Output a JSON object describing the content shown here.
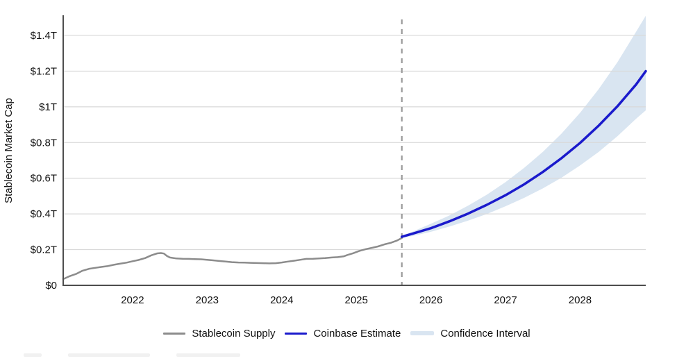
{
  "chart_data": {
    "type": "line",
    "title": "",
    "xlabel": "",
    "ylabel": "Stablecoin Market Cap",
    "x_unit": "year",
    "y_unit": "trillions USD",
    "xlim": [
      2021.07,
      2028.88
    ],
    "ylim": [
      0,
      1.513
    ],
    "grid": "horizontal",
    "colors": {
      "history_line": "#8c8c8c",
      "forecast_line": "#1a1acc",
      "confidence_band": "#d9e5f1",
      "gridline": "#d9d9d9",
      "axis": "#4d4d4d",
      "divider": "#999999",
      "text": "#111111"
    },
    "yticks": [
      {
        "v": 0.0,
        "label": "$0"
      },
      {
        "v": 0.2,
        "label": "$0.2T"
      },
      {
        "v": 0.4,
        "label": "$0.4T"
      },
      {
        "v": 0.6,
        "label": "$0.6T"
      },
      {
        "v": 0.8,
        "label": "$0.8T"
      },
      {
        "v": 1.0,
        "label": "$1T"
      },
      {
        "v": 1.2,
        "label": "$1.2T"
      },
      {
        "v": 1.4,
        "label": "$1.4T"
      }
    ],
    "xticks": [
      {
        "v": 2022,
        "label": "2022"
      },
      {
        "v": 2023,
        "label": "2023"
      },
      {
        "v": 2024,
        "label": "2024"
      },
      {
        "v": 2025,
        "label": "2025"
      },
      {
        "v": 2026,
        "label": "2026"
      },
      {
        "v": 2027,
        "label": "2027"
      },
      {
        "v": 2028,
        "label": "2028"
      }
    ],
    "forecast_divider_x": 2025.61,
    "series": [
      {
        "name": "Stablecoin Supply",
        "color": "#8c8c8c",
        "width": 2.5,
        "points": [
          [
            2021.07,
            0.035
          ],
          [
            2021.15,
            0.05
          ],
          [
            2021.25,
            0.065
          ],
          [
            2021.33,
            0.082
          ],
          [
            2021.42,
            0.093
          ],
          [
            2021.5,
            0.098
          ],
          [
            2021.58,
            0.103
          ],
          [
            2021.67,
            0.108
          ],
          [
            2021.75,
            0.115
          ],
          [
            2021.83,
            0.121
          ],
          [
            2021.92,
            0.127
          ],
          [
            2022.0,
            0.135
          ],
          [
            2022.08,
            0.142
          ],
          [
            2022.17,
            0.153
          ],
          [
            2022.25,
            0.168
          ],
          [
            2022.33,
            0.179
          ],
          [
            2022.38,
            0.181
          ],
          [
            2022.42,
            0.178
          ],
          [
            2022.46,
            0.165
          ],
          [
            2022.5,
            0.156
          ],
          [
            2022.58,
            0.151
          ],
          [
            2022.67,
            0.149
          ],
          [
            2022.75,
            0.148
          ],
          [
            2022.83,
            0.147
          ],
          [
            2022.92,
            0.146
          ],
          [
            2023.0,
            0.143
          ],
          [
            2023.08,
            0.14
          ],
          [
            2023.17,
            0.136
          ],
          [
            2023.25,
            0.133
          ],
          [
            2023.33,
            0.13
          ],
          [
            2023.42,
            0.128
          ],
          [
            2023.5,
            0.127
          ],
          [
            2023.58,
            0.126
          ],
          [
            2023.67,
            0.125
          ],
          [
            2023.75,
            0.124
          ],
          [
            2023.83,
            0.123
          ],
          [
            2023.92,
            0.124
          ],
          [
            2024.0,
            0.128
          ],
          [
            2024.08,
            0.133
          ],
          [
            2024.17,
            0.138
          ],
          [
            2024.25,
            0.143
          ],
          [
            2024.33,
            0.148
          ],
          [
            2024.42,
            0.149
          ],
          [
            2024.5,
            0.151
          ],
          [
            2024.58,
            0.153
          ],
          [
            2024.67,
            0.156
          ],
          [
            2024.75,
            0.158
          ],
          [
            2024.83,
            0.162
          ],
          [
            2024.88,
            0.17
          ],
          [
            2024.96,
            0.18
          ],
          [
            2025.04,
            0.193
          ],
          [
            2025.13,
            0.203
          ],
          [
            2025.21,
            0.21
          ],
          [
            2025.29,
            0.218
          ],
          [
            2025.38,
            0.23
          ],
          [
            2025.46,
            0.238
          ],
          [
            2025.54,
            0.25
          ],
          [
            2025.61,
            0.265
          ]
        ]
      },
      {
        "name": "Coinbase Estimate",
        "color": "#1a1acc",
        "width": 3.5,
        "points": [
          [
            2025.61,
            0.272
          ],
          [
            2025.75,
            0.289
          ],
          [
            2026.0,
            0.32
          ],
          [
            2026.25,
            0.359
          ],
          [
            2026.5,
            0.402
          ],
          [
            2026.75,
            0.451
          ],
          [
            2027.0,
            0.505
          ],
          [
            2027.25,
            0.566
          ],
          [
            2027.5,
            0.635
          ],
          [
            2027.75,
            0.712
          ],
          [
            2028.0,
            0.798
          ],
          [
            2028.25,
            0.895
          ],
          [
            2028.5,
            1.003
          ],
          [
            2028.75,
            1.125
          ],
          [
            2028.88,
            1.2
          ]
        ]
      }
    ],
    "band": {
      "name": "Confidence Interval",
      "color": "#d9e5f1",
      "upper": [
        [
          2025.61,
          0.278
        ],
        [
          2025.75,
          0.3
        ],
        [
          2026.0,
          0.345
        ],
        [
          2026.25,
          0.392
        ],
        [
          2026.5,
          0.447
        ],
        [
          2026.75,
          0.508
        ],
        [
          2027.0,
          0.578
        ],
        [
          2027.25,
          0.658
        ],
        [
          2027.5,
          0.748
        ],
        [
          2027.75,
          0.85
        ],
        [
          2028.0,
          0.967
        ],
        [
          2028.25,
          1.1
        ],
        [
          2028.5,
          1.25
        ],
        [
          2028.75,
          1.42
        ],
        [
          2028.88,
          1.51
        ]
      ],
      "lower": [
        [
          2025.61,
          0.266
        ],
        [
          2025.75,
          0.276
        ],
        [
          2026.0,
          0.3
        ],
        [
          2026.25,
          0.33
        ],
        [
          2026.5,
          0.363
        ],
        [
          2026.75,
          0.4
        ],
        [
          2027.0,
          0.443
        ],
        [
          2027.25,
          0.49
        ],
        [
          2027.5,
          0.543
        ],
        [
          2027.75,
          0.603
        ],
        [
          2028.0,
          0.672
        ],
        [
          2028.25,
          0.748
        ],
        [
          2028.5,
          0.835
        ],
        [
          2028.75,
          0.933
        ],
        [
          2028.88,
          0.98
        ]
      ]
    },
    "legend_position": "bottom-center"
  }
}
